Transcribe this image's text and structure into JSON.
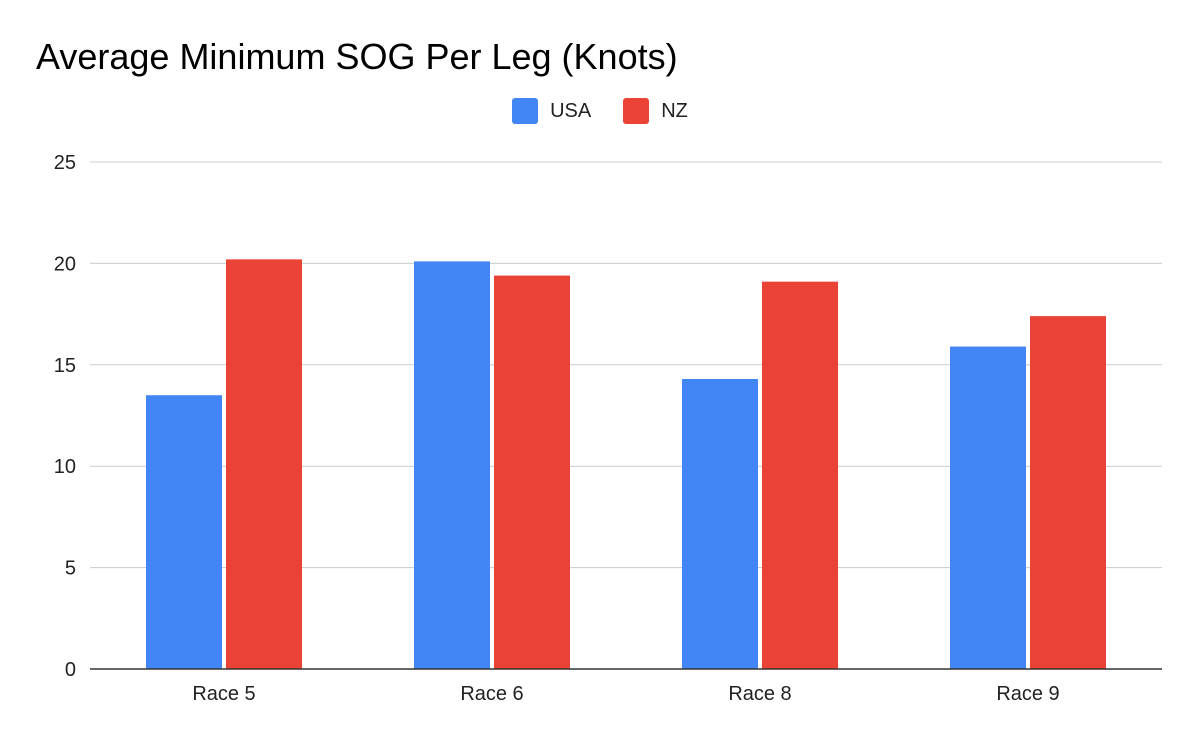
{
  "chart_data": {
    "type": "bar",
    "title": "Average Minimum SOG Per Leg (Knots)",
    "categories": [
      "Race 5",
      "Race 6",
      "Race 8",
      "Race 9"
    ],
    "series": [
      {
        "name": "USA",
        "color": "#4285f4",
        "values": [
          13.5,
          20.1,
          14.3,
          15.9
        ]
      },
      {
        "name": "NZ",
        "color": "#ea4335",
        "values": [
          20.2,
          19.4,
          19.1,
          17.4
        ]
      }
    ],
    "ylim": [
      0,
      25
    ],
    "yticks": [
      "0",
      "5",
      "10",
      "15",
      "20",
      "25"
    ],
    "legend_position": "top-center",
    "grid": true
  }
}
